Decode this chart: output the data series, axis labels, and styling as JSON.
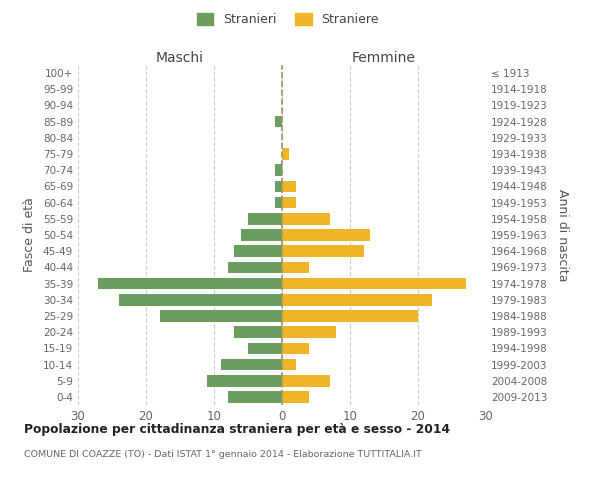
{
  "age_groups": [
    "100+",
    "95-99",
    "90-94",
    "85-89",
    "80-84",
    "75-79",
    "70-74",
    "65-69",
    "60-64",
    "55-59",
    "50-54",
    "45-49",
    "40-44",
    "35-39",
    "30-34",
    "25-29",
    "20-24",
    "15-19",
    "10-14",
    "5-9",
    "0-4"
  ],
  "birth_years": [
    "≤ 1913",
    "1914-1918",
    "1919-1923",
    "1924-1928",
    "1929-1933",
    "1934-1938",
    "1939-1943",
    "1944-1948",
    "1949-1953",
    "1954-1958",
    "1959-1963",
    "1964-1968",
    "1969-1973",
    "1974-1978",
    "1979-1983",
    "1984-1988",
    "1989-1993",
    "1994-1998",
    "1999-2003",
    "2004-2008",
    "2009-2013"
  ],
  "maschi": [
    0,
    0,
    0,
    1,
    0,
    0,
    1,
    1,
    1,
    5,
    6,
    7,
    8,
    27,
    24,
    18,
    7,
    5,
    9,
    11,
    8
  ],
  "femmine": [
    0,
    0,
    0,
    0,
    0,
    1,
    0,
    2,
    2,
    7,
    13,
    12,
    4,
    27,
    22,
    20,
    8,
    4,
    2,
    7,
    4
  ],
  "maschi_color": "#6b9e5e",
  "femmine_color": "#f0b429",
  "title": "Popolazione per cittadinanza straniera per età e sesso - 2014",
  "subtitle": "COMUNE DI COAZZE (TO) - Dati ISTAT 1° gennaio 2014 - Elaborazione TUTTITALIA.IT",
  "ylabel_left": "Fasce di età",
  "ylabel_right": "Anni di nascita",
  "legend_maschi": "Stranieri",
  "legend_femmine": "Straniere",
  "maschi_label": "Maschi",
  "femmine_label": "Femmine",
  "xlim": 30,
  "background_color": "#ffffff",
  "grid_color": "#cccccc",
  "bar_height": 0.72
}
